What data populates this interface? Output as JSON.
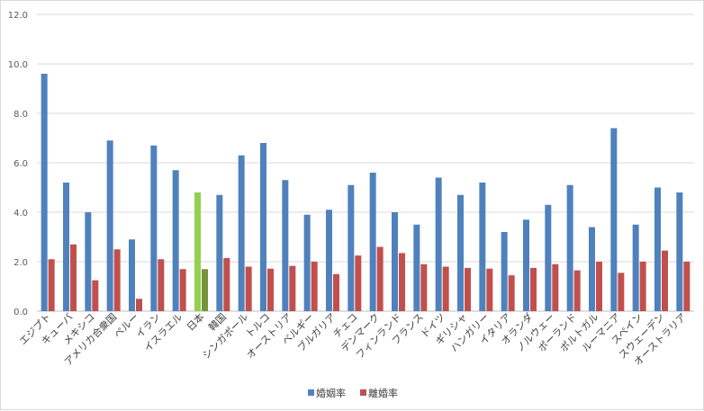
{
  "chart_data": {
    "type": "bar",
    "title": "",
    "xlabel": "",
    "ylabel": "",
    "ylim": [
      0,
      12
    ],
    "yticks": [
      "0.0",
      "2.0",
      "4.0",
      "6.0",
      "8.0",
      "10.0",
      "12.0"
    ],
    "grid": true,
    "legend_position": "bottom",
    "categories": [
      "エジプト",
      "キューバ",
      "メキシコ",
      "アメリカ合衆国",
      "ペルー",
      "イラン",
      "イスラエル",
      "日本",
      "韓国",
      "シンガポール",
      "トルコ",
      "オーストリア",
      "ベルギー",
      "ブルガリア",
      "チェコ",
      "デンマーク",
      "フィンランド",
      "フランス",
      "ドイツ",
      "ギリシャ",
      "ハンガリー",
      "イタリア",
      "オランダ",
      "ノルウェー",
      "ポーランド",
      "ポルトガル",
      "ルーマニア",
      "スペイン",
      "スウェーデン",
      "オーストラリア"
    ],
    "series": [
      {
        "name": "婚姻率",
        "color": "#4f81bd",
        "values": [
          9.6,
          5.2,
          4.0,
          6.9,
          2.9,
          6.7,
          5.7,
          4.8,
          4.7,
          6.3,
          6.8,
          5.3,
          3.9,
          4.1,
          5.1,
          5.6,
          4.0,
          3.5,
          5.4,
          4.7,
          5.2,
          3.2,
          3.7,
          4.3,
          5.1,
          3.4,
          7.4,
          3.5,
          5.0,
          4.8
        ]
      },
      {
        "name": "離婚率",
        "color": "#c0504d",
        "values": [
          2.1,
          2.7,
          1.25,
          2.5,
          0.5,
          2.1,
          1.7,
          1.7,
          2.15,
          1.8,
          1.72,
          1.83,
          2.0,
          1.5,
          2.25,
          2.6,
          2.35,
          1.9,
          1.8,
          1.75,
          1.72,
          1.45,
          1.75,
          1.9,
          1.65,
          2.0,
          1.55,
          2.0,
          2.45,
          2.0
        ]
      }
    ],
    "highlight": {
      "category": "日本",
      "colors": [
        "#92d050",
        "#77933c"
      ]
    }
  }
}
